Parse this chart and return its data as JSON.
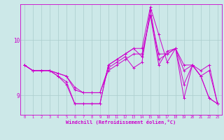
{
  "xlabel": "Windchill (Refroidissement éolien,°C)",
  "background_color": "#cce8e8",
  "line_color": "#cc00cc",
  "grid_color": "#aacccc",
  "xlim": [
    -0.5,
    23.5
  ],
  "ylim": [
    8.65,
    10.65
  ],
  "yticks": [
    9,
    10
  ],
  "xticks": [
    0,
    1,
    2,
    3,
    4,
    5,
    6,
    7,
    8,
    9,
    10,
    11,
    12,
    13,
    14,
    15,
    16,
    17,
    18,
    19,
    20,
    21,
    22,
    23
  ],
  "lines": [
    {
      "x": [
        0,
        1,
        2,
        3,
        4,
        5,
        6,
        7,
        8,
        9,
        10,
        11,
        12,
        13,
        14,
        15,
        16,
        17,
        18,
        19,
        20,
        21,
        22,
        23
      ],
      "y": [
        9.55,
        9.45,
        9.45,
        9.45,
        9.4,
        9.35,
        9.15,
        9.05,
        9.05,
        9.05,
        9.45,
        9.55,
        9.65,
        9.75,
        9.75,
        10.45,
        9.75,
        9.75,
        9.85,
        9.55,
        9.55,
        9.45,
        9.55,
        8.85
      ]
    },
    {
      "x": [
        0,
        1,
        2,
        3,
        4,
        5,
        6,
        7,
        8,
        9,
        10,
        11,
        12,
        13,
        14,
        15,
        16,
        17,
        18,
        19,
        20,
        21,
        22,
        23
      ],
      "y": [
        9.55,
        9.45,
        9.45,
        9.45,
        9.4,
        9.35,
        9.1,
        9.05,
        9.05,
        9.05,
        9.5,
        9.6,
        9.7,
        9.5,
        9.6,
        10.55,
        9.65,
        9.75,
        9.85,
        9.45,
        9.55,
        9.35,
        9.45,
        8.85
      ]
    },
    {
      "x": [
        0,
        1,
        2,
        3,
        4,
        5,
        6,
        7,
        8,
        9,
        10,
        11,
        12,
        13,
        14,
        15,
        16,
        17,
        18,
        19,
        20,
        21,
        22,
        23
      ],
      "y": [
        9.55,
        9.45,
        9.45,
        9.45,
        9.35,
        9.25,
        8.85,
        8.85,
        8.85,
        8.85,
        9.55,
        9.65,
        9.75,
        9.85,
        9.85,
        10.6,
        10.1,
        9.6,
        9.85,
        9.2,
        9.55,
        9.35,
        8.95,
        8.85
      ]
    },
    {
      "x": [
        0,
        1,
        2,
        3,
        4,
        5,
        6,
        7,
        8,
        9,
        10,
        11,
        12,
        13,
        14,
        15,
        16,
        17,
        18,
        19,
        20,
        21,
        22,
        23
      ],
      "y": [
        9.55,
        9.45,
        9.45,
        9.45,
        9.35,
        9.2,
        8.85,
        8.85,
        8.85,
        8.85,
        9.55,
        9.65,
        9.75,
        9.85,
        9.7,
        10.45,
        9.55,
        9.8,
        9.85,
        8.95,
        9.55,
        9.35,
        8.95,
        8.85
      ]
    }
  ]
}
